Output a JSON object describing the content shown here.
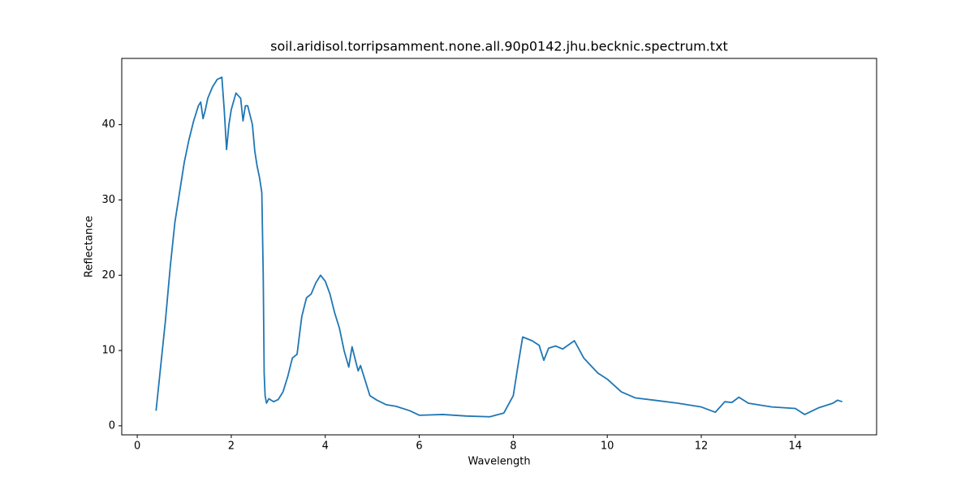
{
  "chart_data": {
    "type": "line",
    "title": "soil.aridisol.torripsamment.none.all.90p0142.jhu.becknic.spectrum.txt",
    "x_label": "Wavelength",
    "y_label": "Reflectance",
    "x": [
      0.4,
      0.45,
      0.5,
      0.6,
      0.7,
      0.8,
      0.9,
      1.0,
      1.1,
      1.2,
      1.3,
      1.35,
      1.4,
      1.45,
      1.5,
      1.6,
      1.7,
      1.8,
      1.85,
      1.9,
      1.95,
      2.0,
      2.1,
      2.2,
      2.25,
      2.3,
      2.35,
      2.45,
      2.5,
      2.55,
      2.6,
      2.65,
      2.68,
      2.7,
      2.72,
      2.75,
      2.8,
      2.9,
      3.0,
      3.1,
      3.2,
      3.3,
      3.4,
      3.45,
      3.5,
      3.6,
      3.7,
      3.8,
      3.9,
      4.0,
      4.1,
      4.2,
      4.3,
      4.4,
      4.5,
      4.57,
      4.65,
      4.7,
      4.75,
      4.85,
      4.95,
      5.1,
      5.3,
      5.5,
      5.8,
      6.0,
      6.5,
      7.0,
      7.5,
      7.8,
      8.0,
      8.1,
      8.2,
      8.4,
      8.55,
      8.65,
      8.75,
      8.9,
      9.05,
      9.3,
      9.5,
      9.8,
      10.0,
      10.3,
      10.6,
      11.0,
      11.5,
      12.0,
      12.3,
      12.5,
      12.65,
      12.8,
      13.0,
      13.5,
      14.0,
      14.2,
      14.5,
      14.8,
      14.9,
      15.0
    ],
    "series": [
      {
        "name": "Reflectance",
        "color": "#1f77b4",
        "values": [
          2,
          5,
          8,
          14,
          21,
          27,
          31,
          35,
          38,
          40.5,
          42.5,
          43,
          40.8,
          42,
          43.5,
          45,
          46,
          46.3,
          42,
          36.7,
          40,
          42,
          44.2,
          43.5,
          40.5,
          42.5,
          42.5,
          40,
          36.5,
          34.5,
          33,
          31,
          20,
          7,
          4,
          3,
          3.6,
          3.2,
          3.5,
          4.5,
          6.5,
          9,
          9.5,
          12,
          14.5,
          17,
          17.5,
          19,
          20,
          19.2,
          17.5,
          15,
          13,
          10,
          7.8,
          10.5,
          8.5,
          7.3,
          8,
          6,
          4,
          3.4,
          2.8,
          2.6,
          2,
          1.4,
          1.5,
          1.3,
          1.2,
          1.7,
          4,
          8,
          11.8,
          11.3,
          10.7,
          8.7,
          10.3,
          10.6,
          10.2,
          11.3,
          9,
          7,
          6.2,
          4.5,
          3.7,
          3.4,
          3,
          2.5,
          1.8,
          3.2,
          3.1,
          3.8,
          3,
          2.5,
          2.3,
          1.5,
          2.4,
          3,
          3.4,
          3.2
        ]
      }
    ],
    "xlim": [
      -0.33,
      15.73
    ],
    "ylim": [
      -1.2,
      48.8
    ],
    "xticks": [
      0,
      2,
      4,
      6,
      8,
      10,
      12,
      14
    ],
    "yticks": [
      0,
      10,
      20,
      30,
      40
    ],
    "grid": false
  }
}
